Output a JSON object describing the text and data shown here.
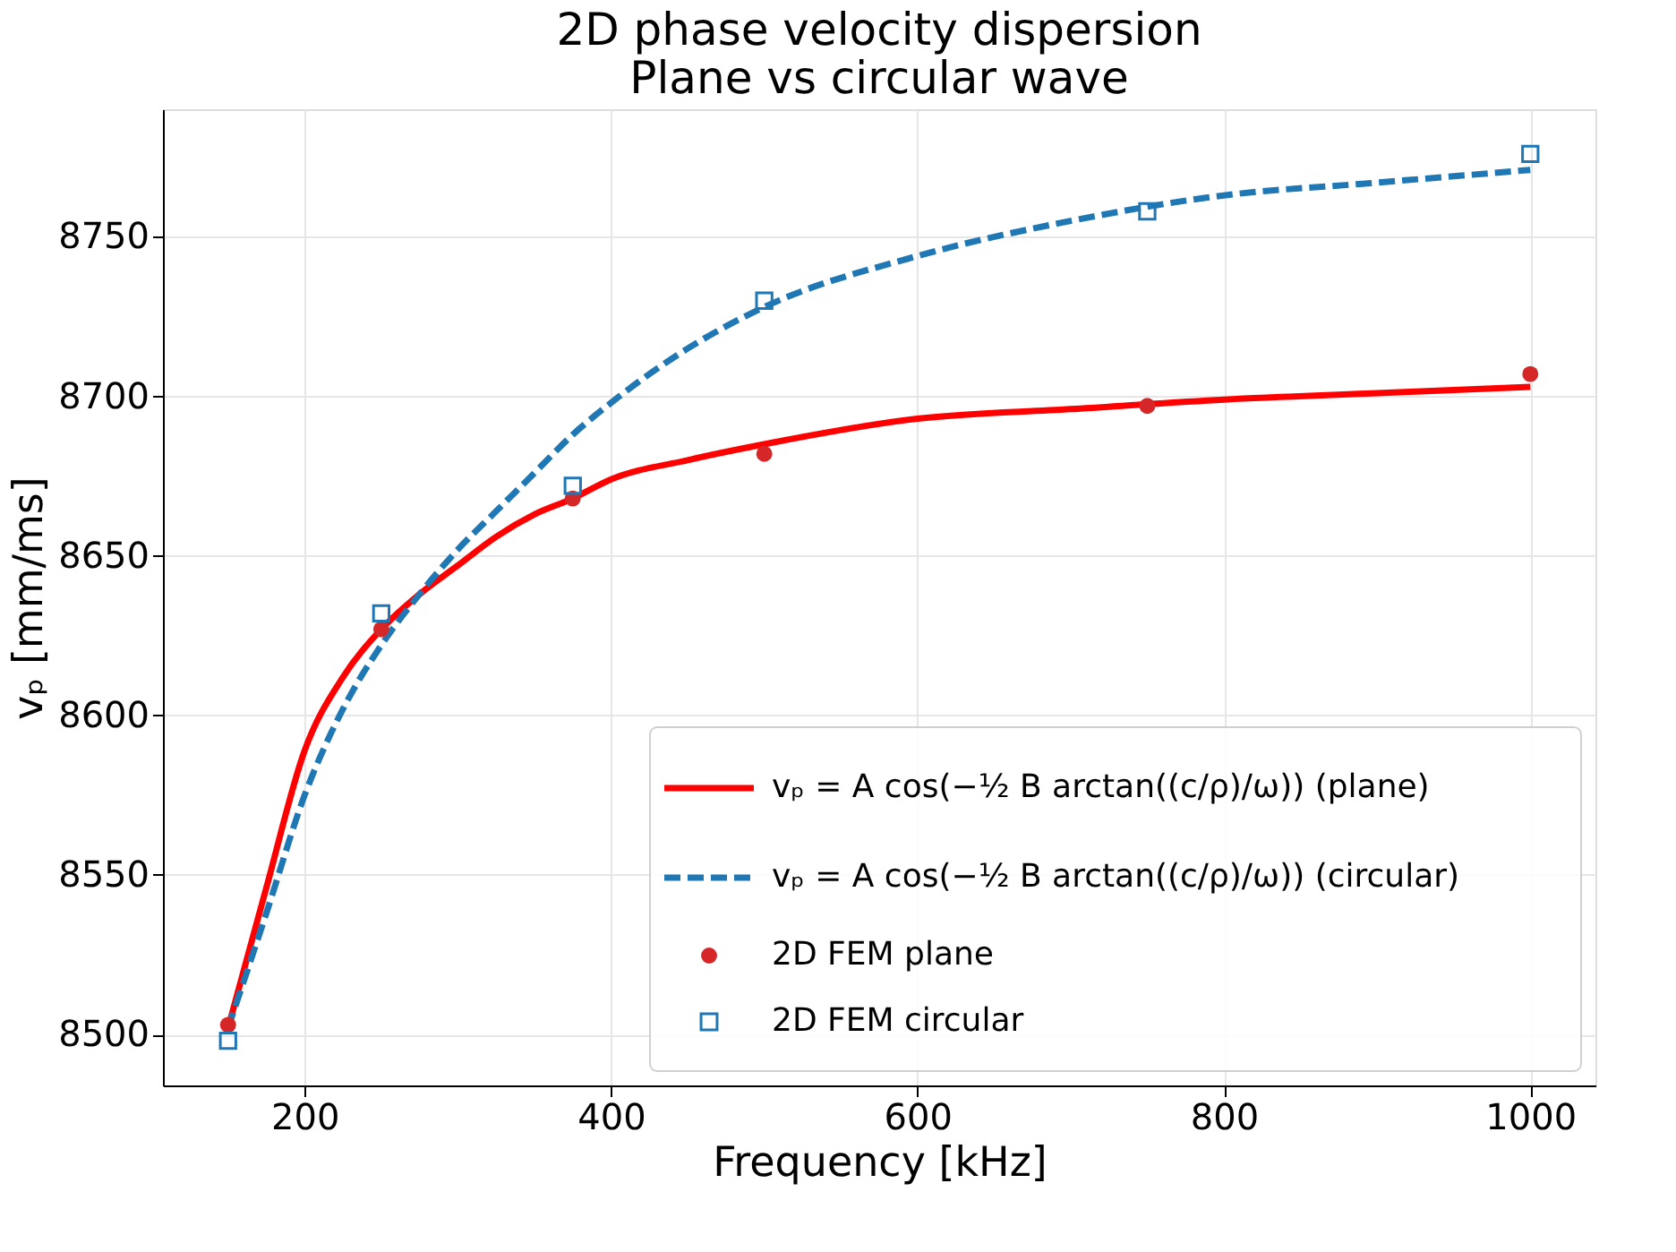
{
  "chart_data": {
    "type": "line",
    "title": [
      "2D phase velocity dispersion",
      "Plane vs circular wave"
    ],
    "xlabel": "Frequency [kHz]",
    "ylabel": "vₚ [mm/ms]",
    "xlim": [
      107.5,
      1042.5
    ],
    "ylim": [
      8484,
      8790
    ],
    "xticks": [
      200,
      400,
      600,
      800,
      1000
    ],
    "yticks": [
      8500,
      8550,
      8600,
      8650,
      8700,
      8750
    ],
    "grid": true,
    "legend": "bottom right",
    "series": [
      {
        "name": "vₚ = A cos(−½ B arctan((c/ρ)/ω)) (plane)",
        "type": "line",
        "line_style": "solid",
        "marker": "none",
        "color": "#ff0000",
        "x": [
          150,
          175,
          200,
          225,
          250,
          275,
          300,
          325,
          350,
          375,
          400,
          450,
          500,
          600,
          700,
          800,
          900,
          1000
        ],
        "values": [
          8502,
          8546,
          8589,
          8612,
          8627,
          8638,
          8647,
          8656,
          8663,
          8668,
          8674,
          8680,
          8685,
          8693,
          8696,
          8699,
          8701,
          8703
        ]
      },
      {
        "name": "vₚ = A cos(−½ B arctan((c/ρ)/ω)) (circular)",
        "type": "line",
        "line_style": "dashed",
        "marker": "none",
        "color": "#1f77b4",
        "x": [
          150,
          175,
          200,
          225,
          250,
          275,
          300,
          325,
          350,
          375,
          400,
          450,
          500,
          600,
          700,
          800,
          900,
          1000
        ],
        "values": [
          8502,
          8538,
          8575,
          8602,
          8622,
          8638,
          8652,
          8664,
          8676,
          8688,
          8698,
          8715,
          8728,
          8744,
          8755,
          8763,
          8767,
          8771
        ]
      },
      {
        "name": "2D FEM plane",
        "type": "scatter",
        "marker": "circle",
        "color": "#d62728",
        "x": [
          150,
          250,
          375,
          500,
          750,
          1000
        ],
        "values": [
          8503,
          8627,
          8668,
          8682,
          8697,
          8707
        ]
      },
      {
        "name": "2D FEM circular",
        "type": "scatter",
        "marker": "square",
        "color": "#1f77b4",
        "x": [
          150,
          250,
          375,
          500,
          750,
          1000
        ],
        "values": [
          8498,
          8632,
          8672,
          8730,
          8758,
          8776
        ]
      }
    ]
  }
}
